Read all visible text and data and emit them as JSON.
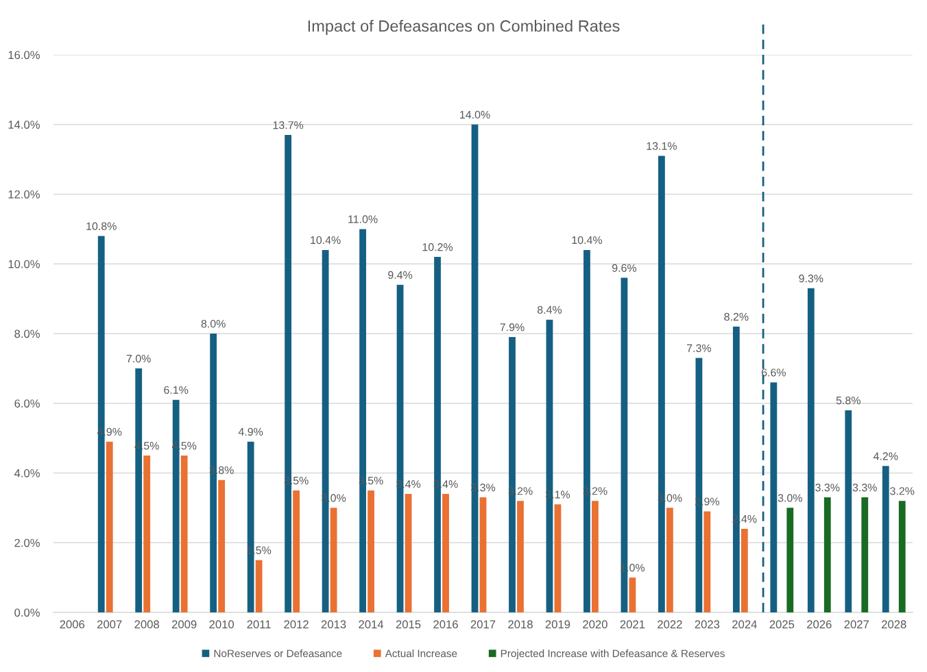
{
  "chart_data": {
    "type": "bar",
    "title": "Impact of Defeasances on Combined Rates",
    "x": [
      2007,
      2008,
      2009,
      2010,
      2011,
      2012,
      2013,
      2014,
      2015,
      2016,
      2017,
      2018,
      2019,
      2020,
      2021,
      2022,
      2023,
      2024,
      2025,
      2026,
      2027,
      2028
    ],
    "xlim": [
      2005.5,
      2028.5
    ],
    "xticks": [
      2006,
      2007,
      2008,
      2009,
      2010,
      2011,
      2012,
      2013,
      2014,
      2015,
      2016,
      2017,
      2018,
      2019,
      2020,
      2021,
      2022,
      2023,
      2024,
      2025,
      2026,
      2027,
      2028
    ],
    "ylim": [
      0,
      16
    ],
    "yticks": [
      {
        "value": 0,
        "label": "0.0%"
      },
      {
        "value": 2,
        "label": "2.0%"
      },
      {
        "value": 4,
        "label": "4.0%"
      },
      {
        "value": 6,
        "label": "6.0%"
      },
      {
        "value": 8,
        "label": "8.0%"
      },
      {
        "value": 10,
        "label": "10.0%"
      },
      {
        "value": 12,
        "label": "12.0%"
      },
      {
        "value": 14,
        "label": "14.0%"
      },
      {
        "value": 16,
        "label": "16.0%"
      }
    ],
    "series": [
      {
        "name": "NoReserves or Defeasance",
        "color": "#156082",
        "values": [
          10.8,
          7.0,
          6.1,
          8.0,
          4.9,
          13.7,
          10.4,
          11.0,
          9.4,
          10.2,
          14.0,
          7.9,
          8.4,
          10.4,
          9.6,
          13.1,
          7.3,
          8.2,
          6.6,
          9.3,
          5.8,
          4.2
        ],
        "value_labels": [
          "10.8%",
          "7.0%",
          "6.1%",
          "8.0%",
          "4.9%",
          "13.7%",
          "10.4%",
          "11.0%",
          "9.4%",
          "10.2%",
          "14.0%",
          "7.9%",
          "8.4%",
          "10.4%",
          "9.6%",
          "13.1%",
          "7.3%",
          "8.2%",
          "6.6%",
          "9.3%",
          "5.8%",
          "4.2%"
        ]
      },
      {
        "name": "Actual Increase",
        "color": "#e97132",
        "values": [
          4.9,
          4.5,
          4.5,
          3.8,
          1.5,
          3.5,
          3.0,
          3.5,
          3.4,
          3.4,
          3.3,
          3.2,
          3.1,
          3.2,
          1.0,
          3.0,
          2.9,
          2.4,
          null,
          null,
          null,
          null
        ],
        "value_labels": [
          "4.9%",
          "4.5%",
          "4.5%",
          "3.8%",
          "1.5%",
          "3.5%",
          "3.0%",
          "3.5%",
          "3.4%",
          "3.4%",
          "3.3%",
          "3.2%",
          "3.1%",
          "3.2%",
          "1.0%",
          "3.0%",
          "2.9%",
          "2.4%",
          null,
          null,
          null,
          null
        ]
      },
      {
        "name": "Projected Increase with Defeasance & Reserves",
        "color": "#196b24",
        "values": [
          null,
          null,
          null,
          null,
          null,
          null,
          null,
          null,
          null,
          null,
          null,
          null,
          null,
          null,
          null,
          null,
          null,
          null,
          3.0,
          3.3,
          3.3,
          3.2
        ],
        "value_labels": [
          null,
          null,
          null,
          null,
          null,
          null,
          null,
          null,
          null,
          null,
          null,
          null,
          null,
          null,
          null,
          null,
          null,
          null,
          "3.0%",
          "3.3%",
          "3.3%",
          "3.2%"
        ]
      }
    ],
    "ref_lines": [
      {
        "axis": "x",
        "value": 2024.5,
        "color": "#156082",
        "line_style": "dashed"
      }
    ],
    "grid": "y",
    "legend": "bottom"
  }
}
